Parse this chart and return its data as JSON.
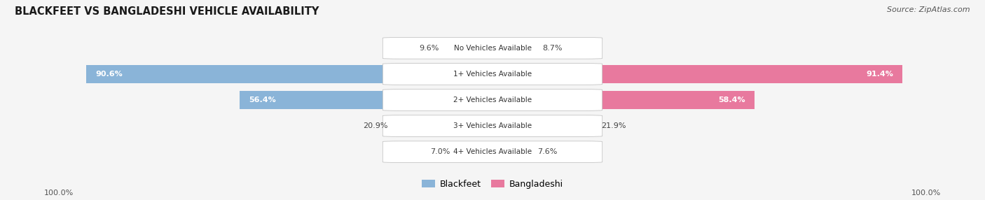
{
  "title": "BLACKFEET VS BANGLADESHI VEHICLE AVAILABILITY",
  "source": "Source: ZipAtlas.com",
  "categories": [
    "No Vehicles Available",
    "1+ Vehicles Available",
    "2+ Vehicles Available",
    "3+ Vehicles Available",
    "4+ Vehicles Available"
  ],
  "blackfeet_values": [
    9.6,
    90.6,
    56.4,
    20.9,
    7.0
  ],
  "bangladeshi_values": [
    8.7,
    91.4,
    58.4,
    21.9,
    7.6
  ],
  "blackfeet_color": "#8ab4d8",
  "bangladeshi_color": "#e8799e",
  "background_row_color": "#e8e8e8",
  "fig_bg": "#f5f5f5",
  "max_value": 100.0,
  "legend_blackfeet": "Blackfeet",
  "legend_bangladeshi": "Bangladeshi",
  "inside_label_threshold": 25.0
}
